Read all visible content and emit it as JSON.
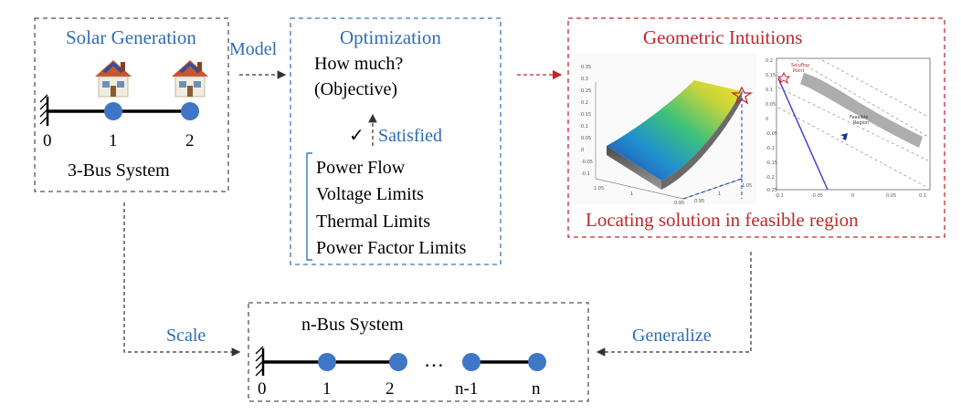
{
  "solar_box": {
    "title": "Solar Generation",
    "node_labels": [
      "0",
      "1",
      "2"
    ],
    "system_label": "3-Bus System"
  },
  "model_label": "Model",
  "optimization_box": {
    "title": "Optimization",
    "objective_line1": "How much?",
    "objective_line2": "(Objective)",
    "check_mark": "✓",
    "satisfied_label": "Satisfied",
    "constraints": [
      "Power Flow",
      "Voltage Limits",
      "Thermal Limits",
      "Power Factor Limits"
    ]
  },
  "geometric_box": {
    "title": "Geometric Intuitions",
    "footer": "Locating solution in feasible region",
    "plot_left": {
      "y_ticks": [
        "0.35",
        "0.3",
        "0.25",
        "0.2",
        "0.15",
        "0.1",
        "0.05",
        "0",
        "-0.05",
        "-0.1"
      ],
      "x_ticks": [
        "1.05",
        "1",
        "0.95"
      ],
      "x2_ticks": [
        "0.95",
        "1",
        "1.05"
      ]
    },
    "plot_right": {
      "solution_label_1": "Solution",
      "solution_label_2": "Point",
      "feasible_label_1": "Feasible",
      "feasible_label_2": "Region",
      "y_ticks": [
        "0.2",
        "0.15",
        "0.1",
        "0.05",
        "0",
        "-0.05",
        "-0.1",
        "-0.15",
        "-0.2",
        "-0.25"
      ],
      "x_ticks": [
        "-0.1",
        "-0.05",
        "0",
        "0.05",
        "0.1"
      ]
    }
  },
  "nbus_box": {
    "title": "n-Bus System",
    "node_labels": [
      "0",
      "1",
      "2",
      "n-1",
      "n"
    ],
    "ellipsis": "…"
  },
  "scale_label": "Scale",
  "generalize_label": "Generalize",
  "colors": {
    "blue_text": "#2f6db3",
    "red_text": "#c0282d",
    "node": "#3f76c6",
    "gray_dash": "#555555",
    "blue_dash": "#3a78c0",
    "red_dash": "#c0282d"
  }
}
